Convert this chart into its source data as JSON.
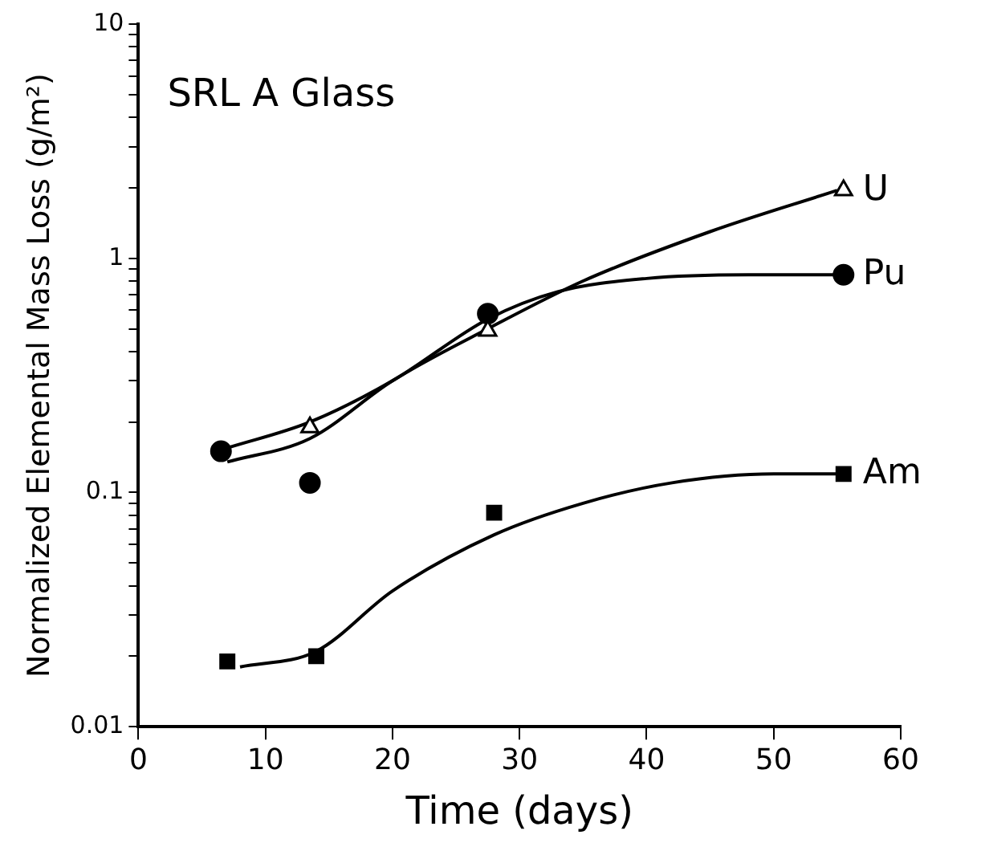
{
  "chart_data": {
    "type": "scatter",
    "title": "SRL A Glass",
    "xlabel": "Time (days)",
    "ylabel": "Normalized Elemental Mass Loss (g/m²)",
    "log": "y",
    "grid": false,
    "legend": false,
    "xlim": [
      0,
      60
    ],
    "xticks": [
      0,
      10,
      20,
      30,
      40,
      50,
      60
    ],
    "ylim": [
      0.01,
      10
    ],
    "yticks": [
      0.01,
      {
        "value": 0.02,
        "label": null
      },
      {
        "value": 0.03,
        "label": null
      },
      {
        "value": 0.04,
        "label": null
      },
      {
        "value": 0.05,
        "label": null
      },
      {
        "value": 0.06,
        "label": null
      },
      {
        "value": 0.07,
        "label": null
      },
      {
        "value": 0.08,
        "label": null
      },
      {
        "value": 0.09,
        "label": null
      },
      0.1,
      {
        "value": 0.2,
        "label": null
      },
      {
        "value": 0.3,
        "label": null
      },
      {
        "value": 0.4,
        "label": null
      },
      {
        "value": 0.5,
        "label": null
      },
      {
        "value": 0.6,
        "label": null
      },
      {
        "value": 0.7,
        "label": null
      },
      {
        "value": 0.8,
        "label": null
      },
      {
        "value": 0.9,
        "label": null
      },
      1,
      {
        "value": 2,
        "label": null
      },
      {
        "value": 3,
        "label": null
      },
      {
        "value": 4,
        "label": null
      },
      {
        "value": 5,
        "label": null
      },
      {
        "value": 6,
        "label": null
      },
      {
        "value": 7,
        "label": null
      },
      {
        "value": 8,
        "label": null
      },
      {
        "value": 9,
        "label": null
      },
      10
    ],
    "series": [
      {
        "name": "U",
        "marker": "triangle",
        "color": "#000000",
        "x": [
          13.5,
          27.5,
          55.5
        ],
        "values": [
          0.19,
          0.49,
          1.95
        ]
      },
      {
        "name": "Pu",
        "marker": "circle",
        "color": "#000000",
        "x": [
          6.5,
          13.5,
          27.5,
          55.5
        ],
        "values": [
          0.15,
          0.11,
          0.58,
          0.85
        ]
      },
      {
        "name": "Am",
        "marker": "square",
        "color": "#000000",
        "x": [
          7,
          14,
          28,
          55.5
        ],
        "values": [
          0.019,
          0.02,
          0.082,
          0.12
        ]
      },
      {
        "type": "line",
        "marker": "none",
        "color": "#000000",
        "x": [
          7,
          13.5,
          20,
          27.5,
          35,
          45,
          55
        ],
        "values": [
          0.135,
          0.17,
          0.3,
          0.5,
          0.8,
          1.3,
          1.95
        ]
      },
      {
        "type": "line",
        "marker": "none",
        "color": "#000000",
        "x": [
          7,
          13.5,
          20,
          27.5,
          33,
          40,
          48,
          55
        ],
        "values": [
          0.155,
          0.2,
          0.3,
          0.55,
          0.72,
          0.82,
          0.85,
          0.85
        ]
      },
      {
        "type": "line",
        "marker": "none",
        "color": "#000000",
        "x": [
          8,
          14,
          20,
          28,
          35,
          42,
          50,
          55
        ],
        "values": [
          0.018,
          0.021,
          0.038,
          0.066,
          0.09,
          0.11,
          0.12,
          0.12
        ]
      }
    ]
  }
}
